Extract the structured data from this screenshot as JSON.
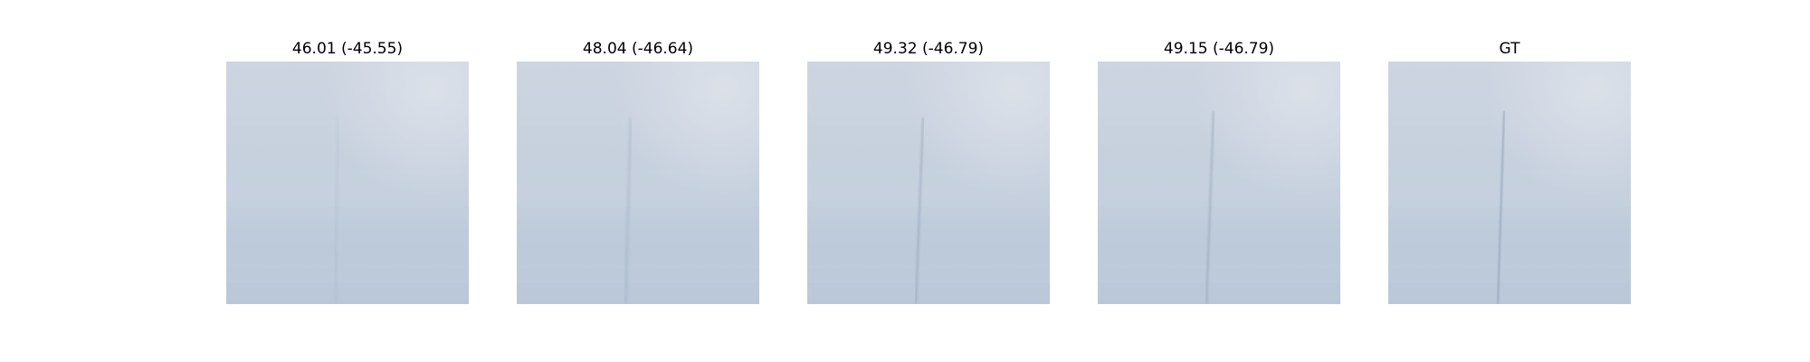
{
  "panels": [
    {
      "title": "46.01 (-45.55)",
      "line_blur": 2.2,
      "line_opacity": 0.18
    },
    {
      "title": "48.04 (-46.64)",
      "line_blur": 1.6,
      "line_opacity": 0.3
    },
    {
      "title": "49.32 (-46.79)",
      "line_blur": 1.1,
      "line_opacity": 0.4
    },
    {
      "title": "49.15 (-46.79)",
      "line_blur": 1.1,
      "line_opacity": 0.4
    },
    {
      "title": "GT",
      "line_blur": 0.8,
      "line_opacity": 0.45
    }
  ],
  "colors": {
    "sky_top": "#cdd5e1",
    "sky_mid": "#c4cfdd",
    "sky_bottom": "#b9c7d8",
    "line": "#7c8ea5"
  }
}
